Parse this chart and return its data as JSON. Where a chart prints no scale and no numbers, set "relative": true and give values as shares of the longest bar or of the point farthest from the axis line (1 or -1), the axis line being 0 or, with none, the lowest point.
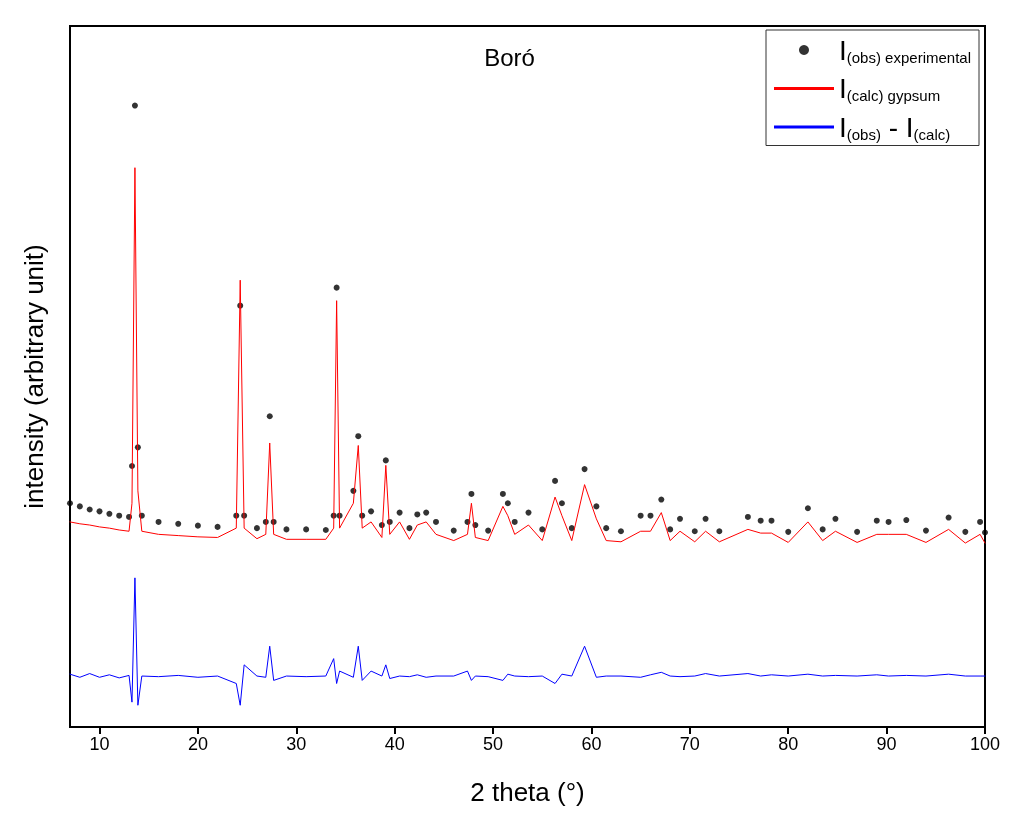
{
  "chart_data": {
    "type": "scatter",
    "title": "Boró",
    "xlabel": "2 theta (°)",
    "ylabel": "intensity (arbitrary unit)",
    "relative": true,
    "xlim": [
      7,
      100
    ],
    "xticks": [
      10,
      20,
      30,
      40,
      50,
      60,
      70,
      80,
      90,
      100
    ],
    "grid": false,
    "legend": "top right",
    "tick_labels": "x",
    "x": [
      7,
      8,
      9,
      10,
      11,
      12,
      13,
      13.3,
      13.6,
      13.9,
      14.3,
      16,
      18,
      20,
      22,
      23.9,
      24.3,
      24.7,
      26,
      26.9,
      27.3,
      27.7,
      29,
      31,
      33,
      33.8,
      34.1,
      34.4,
      35.8,
      36.3,
      36.7,
      37.6,
      38.7,
      39.1,
      39.5,
      40.5,
      41.5,
      42.3,
      43.2,
      44.2,
      46,
      47.4,
      47.8,
      48.2,
      49.5,
      51.0,
      51.5,
      52.2,
      53.6,
      55,
      56.3,
      57.0,
      58,
      59.3,
      60.5,
      61.5,
      63,
      65,
      66,
      67.1,
      68,
      69,
      70.5,
      71.6,
      73,
      75.9,
      77.2,
      78.3,
      80,
      82.0,
      83.5,
      84.8,
      87,
      89,
      90.2,
      92,
      94,
      96.3,
      98,
      99.5,
      100
    ],
    "series": [
      {
        "name": "I$_{(obs) experimental}$",
        "marker": "circle",
        "color": "#000000",
        "values": [
          0.36,
          0.355,
          0.35,
          0.347,
          0.343,
          0.34,
          0.338,
          0.42,
          1.0,
          0.45,
          0.34,
          0.33,
          0.327,
          0.324,
          0.322,
          0.34,
          0.678,
          0.34,
          0.32,
          0.33,
          0.5,
          0.33,
          0.318,
          0.318,
          0.317,
          0.34,
          0.707,
          0.34,
          0.38,
          0.468,
          0.34,
          0.347,
          0.325,
          0.429,
          0.33,
          0.345,
          0.32,
          0.342,
          0.345,
          0.33,
          0.316,
          0.33,
          0.375,
          0.325,
          0.316,
          0.375,
          0.36,
          0.33,
          0.345,
          0.318,
          0.396,
          0.36,
          0.32,
          0.415,
          0.355,
          0.32,
          0.315,
          0.34,
          0.34,
          0.366,
          0.318,
          0.335,
          0.315,
          0.335,
          0.315,
          0.338,
          0.332,
          0.332,
          0.314,
          0.352,
          0.318,
          0.335,
          0.314,
          0.332,
          0.33,
          0.333,
          0.316,
          0.337,
          0.314,
          0.33,
          0.313
        ]
      },
      {
        "name": "I$_{(calc) gypsum}$",
        "type": "line",
        "marker": "none",
        "line_style": "solid",
        "color": "#ff0000",
        "values": [
          0.33,
          0.327,
          0.325,
          0.322,
          0.32,
          0.317,
          0.315,
          0.36,
          0.9,
          0.38,
          0.315,
          0.31,
          0.308,
          0.306,
          0.305,
          0.32,
          0.719,
          0.32,
          0.303,
          0.31,
          0.457,
          0.31,
          0.302,
          0.302,
          0.302,
          0.32,
          0.686,
          0.32,
          0.36,
          0.453,
          0.32,
          0.33,
          0.305,
          0.421,
          0.31,
          0.33,
          0.302,
          0.325,
          0.33,
          0.31,
          0.3,
          0.31,
          0.36,
          0.305,
          0.3,
          0.355,
          0.34,
          0.31,
          0.325,
          0.3,
          0.37,
          0.34,
          0.3,
          0.39,
          0.335,
          0.3,
          0.298,
          0.315,
          0.315,
          0.345,
          0.3,
          0.315,
          0.298,
          0.315,
          0.298,
          0.318,
          0.312,
          0.312,
          0.297,
          0.33,
          0.3,
          0.315,
          0.297,
          0.31,
          0.31,
          0.31,
          0.297,
          0.318,
          0.296,
          0.31,
          0.296
        ]
      },
      {
        "name": "I$_{(obs)}$ - I$_{(calc)}$",
        "type": "line",
        "marker": "none",
        "line_style": "solid",
        "color": "#0000ff",
        "values": [
          0.085,
          0.08,
          0.086,
          0.08,
          0.084,
          0.079,
          0.083,
          0.04,
          0.24,
          0.035,
          0.082,
          0.081,
          0.083,
          0.08,
          0.082,
          0.07,
          0.035,
          0.1,
          0.082,
          0.08,
          0.13,
          0.075,
          0.082,
          0.081,
          0.082,
          0.11,
          0.07,
          0.09,
          0.08,
          0.13,
          0.075,
          0.09,
          0.082,
          0.1,
          0.078,
          0.082,
          0.081,
          0.084,
          0.08,
          0.082,
          0.082,
          0.09,
          0.075,
          0.082,
          0.081,
          0.075,
          0.085,
          0.082,
          0.081,
          0.082,
          0.07,
          0.085,
          0.082,
          0.13,
          0.08,
          0.082,
          0.082,
          0.08,
          0.084,
          0.088,
          0.082,
          0.081,
          0.082,
          0.086,
          0.082,
          0.086,
          0.082,
          0.084,
          0.082,
          0.085,
          0.082,
          0.083,
          0.082,
          0.084,
          0.082,
          0.083,
          0.082,
          0.085,
          0.082,
          0.082,
          0.082
        ]
      }
    ]
  }
}
